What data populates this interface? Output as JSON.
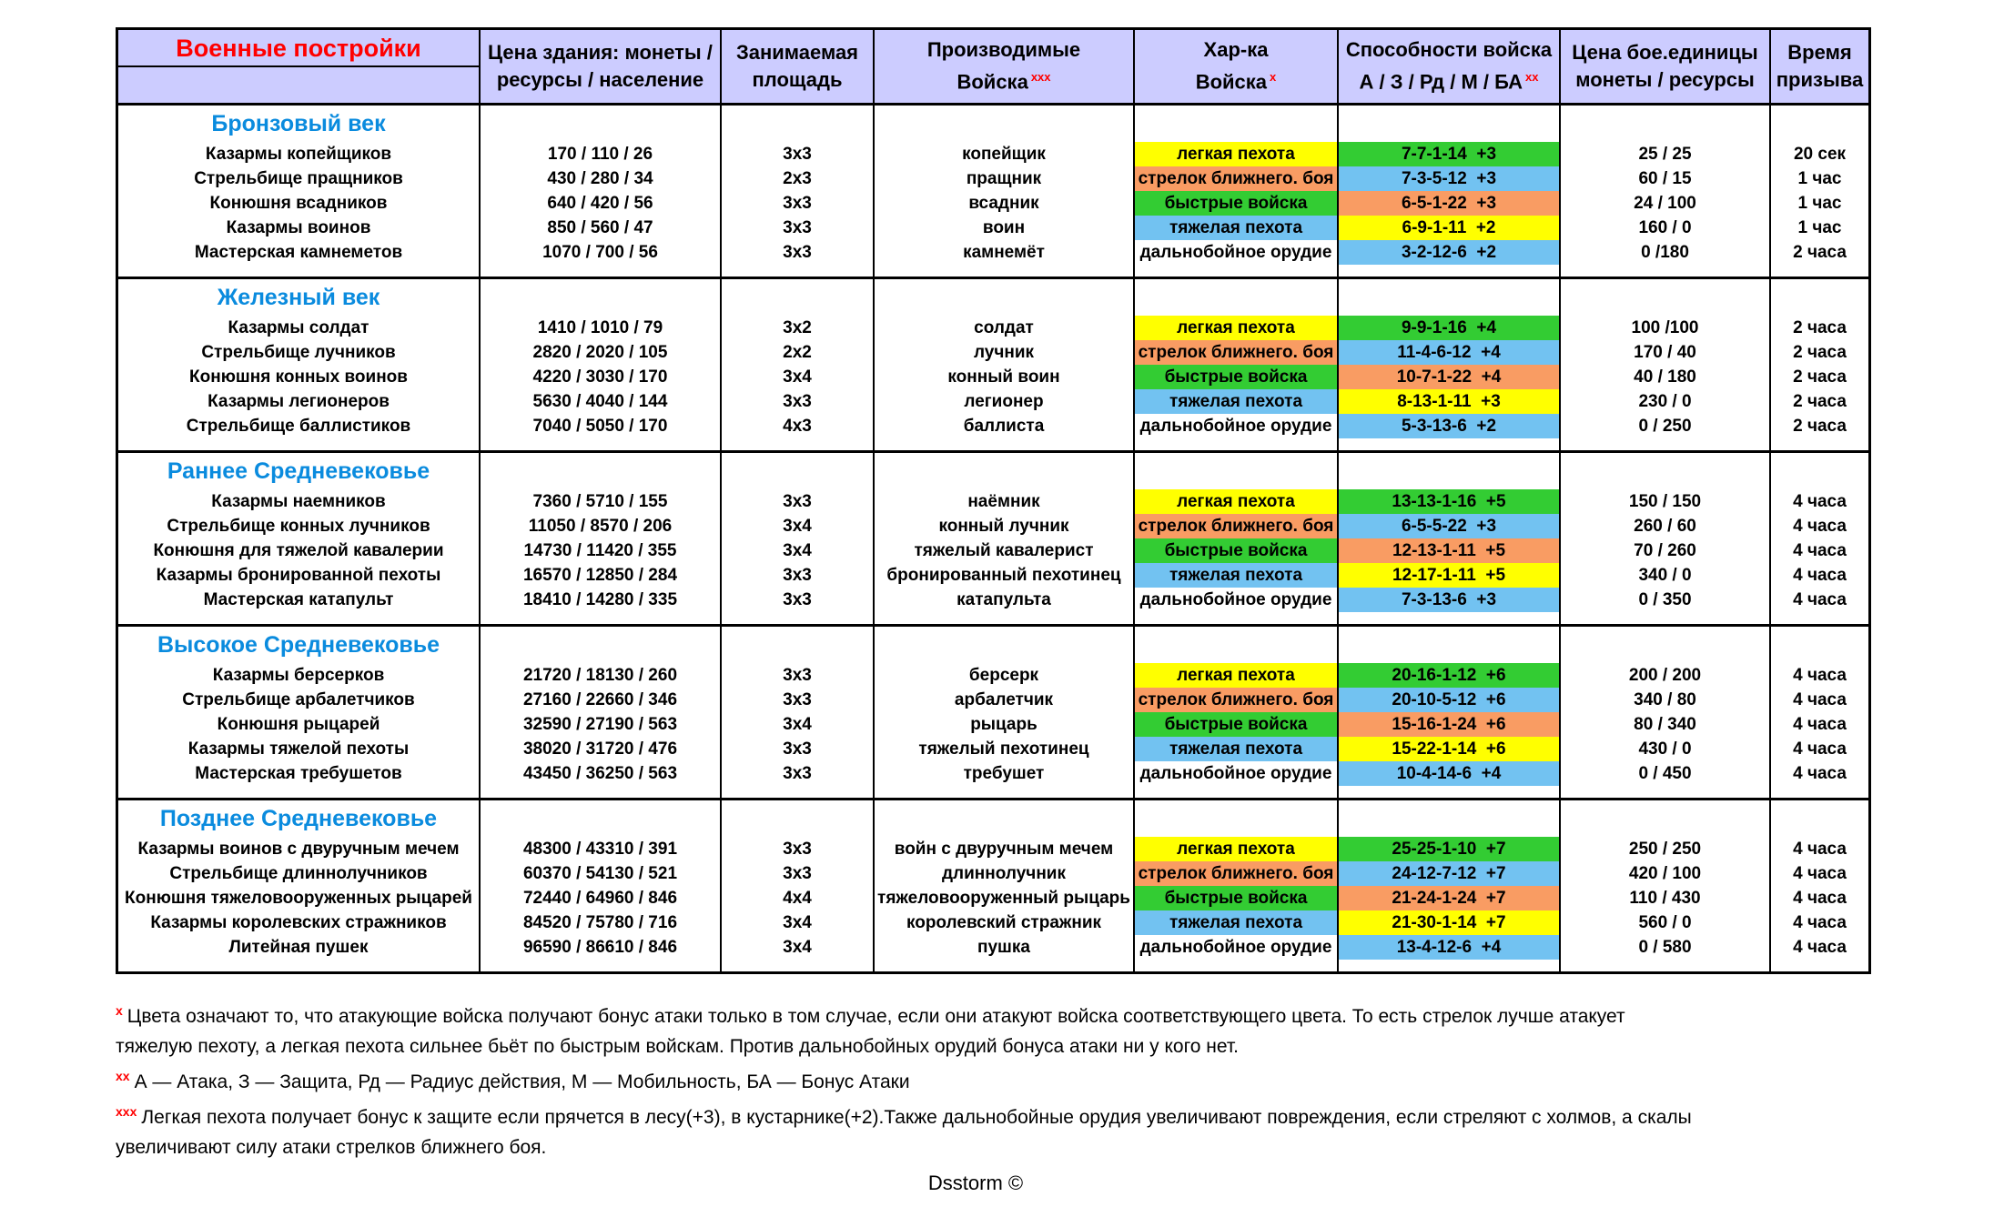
{
  "title": "Военные постройки",
  "colors": {
    "header_bg": "#CCCCFF",
    "title_red": "#FF0000",
    "era_blue": "#0A8BDE",
    "yellow": "#FFFF00",
    "orange": "#F99C63",
    "green": "#33CC33",
    "blue": "#72C2F1",
    "none": "transparent"
  },
  "header": {
    "col2": [
      "Цена здания: монеты /",
      "ресурсы / население"
    ],
    "col3": [
      "Занимаемая",
      "площадь"
    ],
    "col4": [
      "Производимые",
      "Войска"
    ],
    "col4_sup": "ххх",
    "col5": [
      "Хар-ка",
      "Войска"
    ],
    "col5_sup": "х",
    "col6": [
      "Способности войска",
      "А / З / Рд / М / БА"
    ],
    "col6_sup": "хх",
    "col7": [
      "Цена бое.единицы",
      "монеты / ресурсы"
    ],
    "col8": [
      "Время",
      "призыва"
    ]
  },
  "eras": [
    {
      "title": "Бронзовый век",
      "rows": [
        {
          "building": "Казармы копейщиков",
          "price": "170 / 110 / 26",
          "area": "3х3",
          "unit": "копейщик",
          "type": "легкая пехота",
          "type_color": "yellow",
          "ability": "7-7-1-14  +3",
          "ability_color": "green",
          "unit_price": "25 / 25",
          "time": "20 сек"
        },
        {
          "building": "Стрельбище пращников",
          "price": "430 / 280 / 34",
          "area": "2х3",
          "unit": "пращник",
          "type": "стрелок ближнего. боя",
          "type_color": "orange",
          "ability": "7-3-5-12  +3",
          "ability_color": "blue",
          "unit_price": "60 / 15",
          "time": "1 час"
        },
        {
          "building": "Конюшня всадников",
          "price": "640 / 420 / 56",
          "area": "3х3",
          "unit": "всадник",
          "type": "быстрые войска",
          "type_color": "green",
          "ability": "6-5-1-22  +3",
          "ability_color": "orange",
          "unit_price": "24 / 100",
          "time": "1 час"
        },
        {
          "building": "Казармы воинов",
          "price": "850 / 560 / 47",
          "area": "3х3",
          "unit": "воин",
          "type": "тяжелая пехота",
          "type_color": "blue",
          "ability": "6-9-1-11  +2",
          "ability_color": "yellow",
          "unit_price": "160 / 0",
          "time": "1 час"
        },
        {
          "building": "Мастерская камнеметов",
          "price": "1070 / 700 / 56",
          "area": "3х3",
          "unit": "камнемёт",
          "type": "дальнобойное орудие",
          "type_color": "none",
          "ability": "3-2-12-6  +2",
          "ability_color": "blue",
          "unit_price": "0 /180",
          "time": "2 часа"
        }
      ]
    },
    {
      "title": "Железный век",
      "rows": [
        {
          "building": "Казармы солдат",
          "price": "1410 / 1010 / 79",
          "area": "3х2",
          "unit": "солдат",
          "type": "легкая пехота",
          "type_color": "yellow",
          "ability": "9-9-1-16  +4",
          "ability_color": "green",
          "unit_price": "100 /100",
          "time": "2 часа"
        },
        {
          "building": "Стрельбище лучников",
          "price": "2820 / 2020 / 105",
          "area": "2х2",
          "unit": "лучник",
          "type": "стрелок ближнего. боя",
          "type_color": "orange",
          "ability": "11-4-6-12  +4",
          "ability_color": "blue",
          "unit_price": "170 / 40",
          "time": "2 часа"
        },
        {
          "building": "Конюшня конных воинов",
          "price": "4220 / 3030 / 170",
          "area": "3х4",
          "unit": "конный воин",
          "type": "быстрые войска",
          "type_color": "green",
          "ability": "10-7-1-22  +4",
          "ability_color": "orange",
          "unit_price": "40 / 180",
          "time": "2 часа"
        },
        {
          "building": "Казармы легионеров",
          "price": "5630 / 4040 / 144",
          "area": "3х3",
          "unit": "легионер",
          "type": "тяжелая пехота",
          "type_color": "blue",
          "ability": "8-13-1-11  +3",
          "ability_color": "yellow",
          "unit_price": "230 / 0",
          "time": "2 часа"
        },
        {
          "building": "Стрельбище баллистиков",
          "price": "7040 / 5050 / 170",
          "area": "4х3",
          "unit": "баллиста",
          "type": "дальнобойное орудие",
          "type_color": "none",
          "ability": "5-3-13-6  +2",
          "ability_color": "blue",
          "unit_price": "0 / 250",
          "time": "2 часа"
        }
      ]
    },
    {
      "title": "Раннее Средневековье",
      "rows": [
        {
          "building": "Казармы наемников",
          "price": "7360 / 5710 / 155",
          "area": "3х3",
          "unit": "наёмник",
          "type": "легкая пехота",
          "type_color": "yellow",
          "ability": "13-13-1-16  +5",
          "ability_color": "green",
          "unit_price": "150 / 150",
          "time": "4 часа"
        },
        {
          "building": "Стрельбище конных лучников",
          "price": "11050 / 8570 / 206",
          "area": "3х4",
          "unit": "конный лучник",
          "type": "стрелок ближнего. боя",
          "type_color": "orange",
          "ability": "6-5-5-22  +3",
          "ability_color": "blue",
          "unit_price": "260 / 60",
          "time": "4 часа"
        },
        {
          "building": "Конюшня для тяжелой кавалерии",
          "price": "14730 / 11420 / 355",
          "area": "3х4",
          "unit": "тяжелый кавалерист",
          "type": "быстрые войска",
          "type_color": "green",
          "ability": "12-13-1-11  +5",
          "ability_color": "orange",
          "unit_price": "70 / 260",
          "time": "4 часа"
        },
        {
          "building": "Казармы бронированной пехоты",
          "price": "16570 / 12850 / 284",
          "area": "3х3",
          "unit": "бронированный пехотинец",
          "type": "тяжелая пехота",
          "type_color": "blue",
          "ability": "12-17-1-11  +5",
          "ability_color": "yellow",
          "unit_price": "340 / 0",
          "time": "4 часа"
        },
        {
          "building": "Мастерская катапульт",
          "price": "18410 / 14280 / 335",
          "area": "3х3",
          "unit": "катапульта",
          "type": "дальнобойное орудие",
          "type_color": "none",
          "ability": "7-3-13-6  +3",
          "ability_color": "blue",
          "unit_price": "0 / 350",
          "time": "4 часа"
        }
      ]
    },
    {
      "title": "Высокое Средневековье",
      "rows": [
        {
          "building": "Казармы берсерков",
          "price": "21720 / 18130 / 260",
          "area": "3х3",
          "unit": "берсерк",
          "type": "легкая пехота",
          "type_color": "yellow",
          "ability": "20-16-1-12  +6",
          "ability_color": "green",
          "unit_price": "200 / 200",
          "time": "4 часа"
        },
        {
          "building": "Стрельбище арбалетчиков",
          "price": "27160 / 22660 / 346",
          "area": "3х3",
          "unit": "арбалетчик",
          "type": "стрелок ближнего. боя",
          "type_color": "orange",
          "ability": "20-10-5-12  +6",
          "ability_color": "blue",
          "unit_price": "340 / 80",
          "time": "4 часа"
        },
        {
          "building": "Конюшня рыцарей",
          "price": "32590 / 27190 / 563",
          "area": "3х4",
          "unit": "рыцарь",
          "type": "быстрые войска",
          "type_color": "green",
          "ability": "15-16-1-24  +6",
          "ability_color": "orange",
          "unit_price": "80 / 340",
          "time": "4 часа"
        },
        {
          "building": "Казармы тяжелой пехоты",
          "price": "38020 / 31720 / 476",
          "area": "3х3",
          "unit": "тяжелый пехотинец",
          "type": "тяжелая пехота",
          "type_color": "blue",
          "ability": "15-22-1-14  +6",
          "ability_color": "yellow",
          "unit_price": "430 / 0",
          "time": "4 часа"
        },
        {
          "building": "Мастерская требушетов",
          "price": "43450 / 36250 / 563",
          "area": "3х3",
          "unit": "требушет",
          "type": "дальнобойное орудие",
          "type_color": "none",
          "ability": "10-4-14-6  +4",
          "ability_color": "blue",
          "unit_price": "0 / 450",
          "time": "4 часа"
        }
      ]
    },
    {
      "title": "Позднее Средневековье",
      "rows": [
        {
          "building": "Казармы воинов с двуручным мечем",
          "price": "48300 / 43310 / 391",
          "area": "3х3",
          "unit": "войн с двуручным мечем",
          "type": "легкая пехота",
          "type_color": "yellow",
          "ability": "25-25-1-10  +7",
          "ability_color": "green",
          "unit_price": "250 / 250",
          "time": "4 часа"
        },
        {
          "building": "Стрельбище длиннолучников",
          "price": "60370 / 54130 / 521",
          "area": "3х3",
          "unit": "длиннолучник",
          "type": "стрелок ближнего. боя",
          "type_color": "orange",
          "ability": "24-12-7-12  +7",
          "ability_color": "blue",
          "unit_price": "420 / 100",
          "time": "4 часа"
        },
        {
          "building": "Конюшня тяжеловооруженных рыцарей",
          "price": "72440 / 64960 / 846",
          "area": "4х4",
          "unit": "тяжеловооруженный рыцарь",
          "type": "быстрые войска",
          "type_color": "green",
          "ability": "21-24-1-24  +7",
          "ability_color": "orange",
          "unit_price": "110 / 430",
          "time": "4 часа"
        },
        {
          "building": "Казармы королевских стражников",
          "price": "84520 / 75780 / 716",
          "area": "3х4",
          "unit": "королевский стражник",
          "type": "тяжелая пехота",
          "type_color": "blue",
          "ability": "21-30-1-14  +7",
          "ability_color": "yellow",
          "unit_price": "560 / 0",
          "time": "4 часа"
        },
        {
          "building": "Литейная пушек",
          "price": "96590 / 86610 / 846",
          "area": "3х4",
          "unit": "пушка",
          "type": "дальнобойное орудие",
          "type_color": "none",
          "ability": "13-4-12-6  +4",
          "ability_color": "blue",
          "unit_price": "0 / 580",
          "time": "4 часа"
        }
      ]
    }
  ],
  "footnotes": [
    {
      "sup": "х",
      "lines": [
        "Цвета означают то, что атакующие войска получают бонус атаки только в том случае, если они атакуют войска соответствующего цвета. То есть стрелок лучше атакует",
        "тяжелую пехоту, а легкая пехота сильнее бьёт по быстрым войскам. Против дальнобойных орудий бонуса атаки ни у кого нет."
      ]
    },
    {
      "sup": "хх",
      "lines": [
        "А — Атака, З — Защита, Рд — Радиус действия, М — Мобильность, БА — Бонус Атаки"
      ]
    },
    {
      "sup": "ххх",
      "lines": [
        "Легкая пехота получает бонус к защите если прячется в лесу(+3), в кустарнике(+2).Также дальнобойные орудия увеличивают повреждения, если стреляют с холмов, а скалы",
        "увеличивают силу атаки стрелков ближнего боя."
      ]
    }
  ],
  "credit": "Dsstorm ©"
}
